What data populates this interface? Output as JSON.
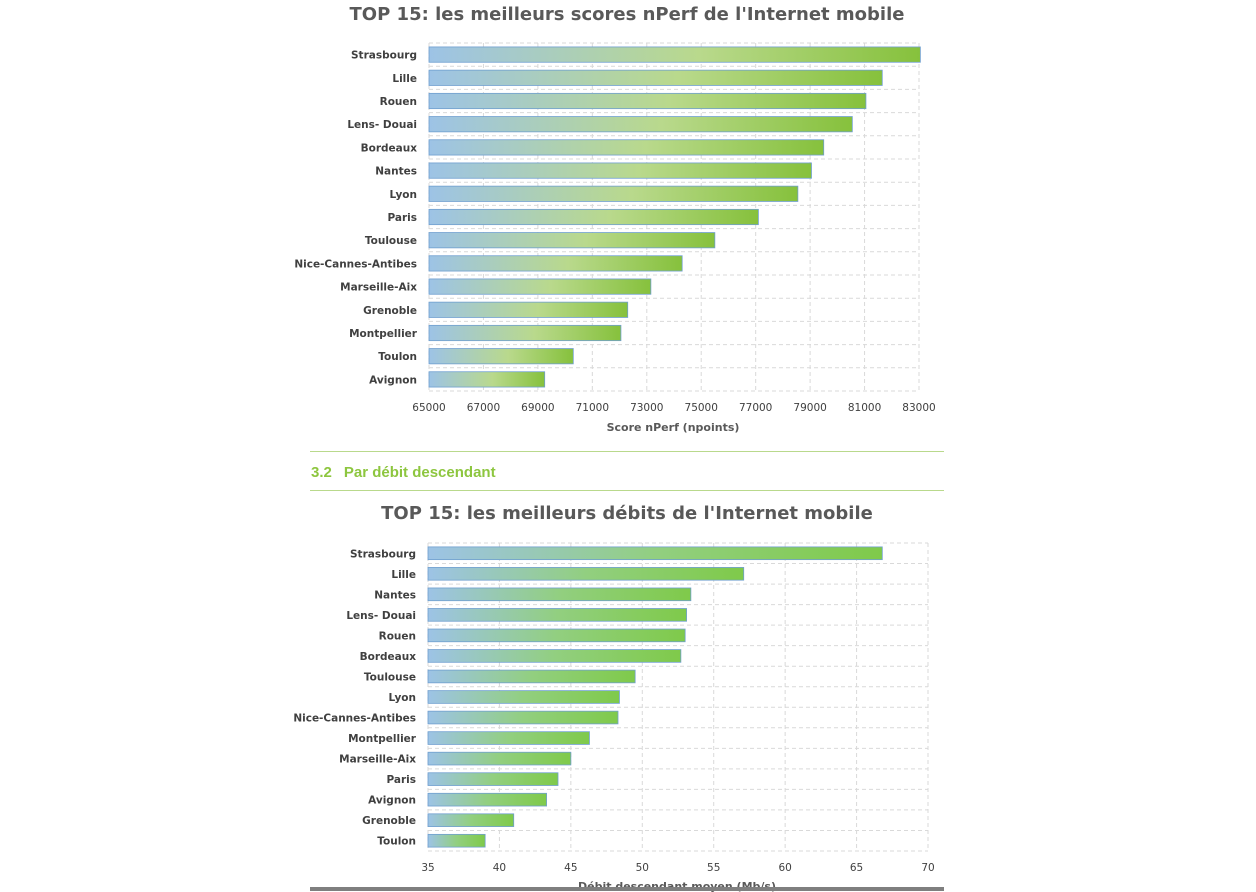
{
  "section": {
    "number": "3.2",
    "title": "Par débit descendant"
  },
  "chart_data": [
    {
      "type": "bar",
      "orientation": "horizontal",
      "title": "TOP 15: les meilleurs scores nPerf de l'Internet mobile",
      "xlabel": "Score nPerf (npoints)",
      "ylabel": "",
      "categories": [
        "Strasbourg",
        "Lille",
        "Rouen",
        "Lens- Douai",
        "Bordeaux",
        "Nantes",
        "Lyon",
        "Paris",
        "Toulouse",
        "Nice-Cannes-Antibes",
        "Marseille-Aix",
        "Grenoble",
        "Montpellier",
        "Toulon",
        "Avignon"
      ],
      "values": [
        83050,
        81650,
        81050,
        80550,
        79500,
        79050,
        78550,
        77100,
        75500,
        74300,
        73150,
        72300,
        72050,
        70300,
        69250
      ],
      "xlim": [
        65000,
        83000
      ],
      "ticks": [
        "65000",
        "67000",
        "69000",
        "71000",
        "73000",
        "75000",
        "77000",
        "79000",
        "81000",
        "83000"
      ],
      "grid": true,
      "colors": {
        "bar_start": "#9dc3e6",
        "bar_mid": "#b9d98c",
        "bar_end": "#86c13c"
      }
    },
    {
      "type": "bar",
      "orientation": "horizontal",
      "title": "TOP 15: les meilleurs débits de l'Internet mobile",
      "xlabel": "Débit descendant moyen (Mb/s)",
      "ylabel": "",
      "categories": [
        "Strasbourg",
        "Lille",
        "Nantes",
        "Lens- Douai",
        "Rouen",
        "Bordeaux",
        "Toulouse",
        "Lyon",
        "Nice-Cannes-Antibes",
        "Montpellier",
        "Marseille-Aix",
        "Paris",
        "Avignon",
        "Grenoble",
        "Toulon"
      ],
      "values": [
        66.8,
        57.1,
        53.4,
        53.1,
        53.0,
        52.7,
        49.5,
        48.4,
        48.3,
        46.3,
        45.0,
        44.1,
        43.3,
        41.0,
        39.0
      ],
      "xlim": [
        35,
        70
      ],
      "ticks": [
        "35",
        "40",
        "45",
        "50",
        "55",
        "60",
        "65",
        "70"
      ],
      "grid": true,
      "colors": {
        "bar_start": "#9dc3e6",
        "bar_end": "#7fca4a"
      }
    }
  ]
}
